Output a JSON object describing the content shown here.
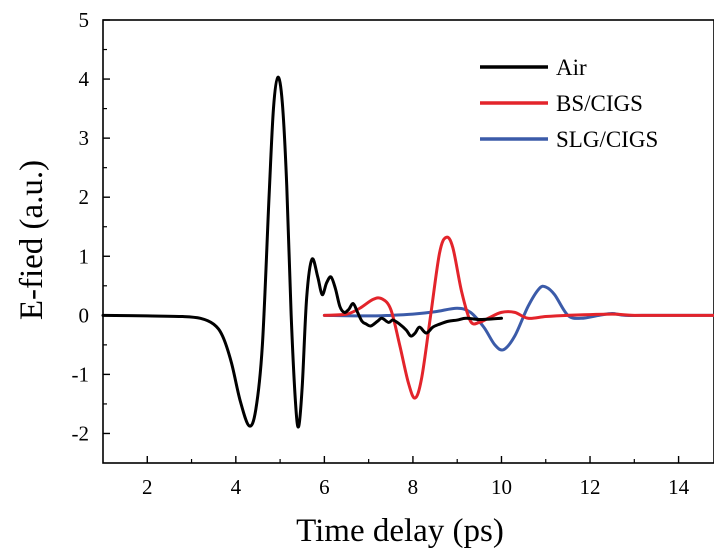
{
  "chart_data": {
    "type": "line",
    "title": "",
    "xlabel": "Time delay (ps)",
    "ylabel": "E-fied (a.u.)",
    "xlim": [
      1,
      14.8
    ],
    "ylim": [
      -2.5,
      5
    ],
    "xticks": [
      2,
      4,
      6,
      8,
      10,
      12,
      14
    ],
    "yticks": [
      -2,
      -1,
      0,
      1,
      2,
      3,
      4,
      5
    ],
    "grid": false,
    "legend": "top-right",
    "series": [
      {
        "name": "Air",
        "color": "#000000",
        "points": [
          [
            1.0,
            0.0
          ],
          [
            2.0,
            -0.01
          ],
          [
            2.8,
            -0.02
          ],
          [
            3.2,
            -0.05
          ],
          [
            3.5,
            -0.15
          ],
          [
            3.7,
            -0.35
          ],
          [
            3.9,
            -0.8
          ],
          [
            4.1,
            -1.45
          ],
          [
            4.3,
            -1.87
          ],
          [
            4.45,
            -1.6
          ],
          [
            4.6,
            -0.5
          ],
          [
            4.75,
            2.0
          ],
          [
            4.85,
            3.5
          ],
          [
            4.95,
            4.03
          ],
          [
            5.05,
            3.6
          ],
          [
            5.15,
            2.2
          ],
          [
            5.25,
            0.0
          ],
          [
            5.35,
            -1.5
          ],
          [
            5.42,
            -1.88
          ],
          [
            5.5,
            -1.2
          ],
          [
            5.6,
            0.3
          ],
          [
            5.72,
            0.95
          ],
          [
            5.85,
            0.65
          ],
          [
            5.95,
            0.35
          ],
          [
            6.05,
            0.55
          ],
          [
            6.15,
            0.65
          ],
          [
            6.25,
            0.45
          ],
          [
            6.35,
            0.15
          ],
          [
            6.45,
            0.05
          ],
          [
            6.55,
            0.1
          ],
          [
            6.65,
            0.2
          ],
          [
            6.75,
            0.05
          ],
          [
            6.85,
            -0.1
          ],
          [
            6.95,
            -0.15
          ],
          [
            7.05,
            -0.18
          ],
          [
            7.2,
            -0.1
          ],
          [
            7.3,
            -0.05
          ],
          [
            7.45,
            -0.12
          ],
          [
            7.55,
            -0.08
          ],
          [
            7.7,
            -0.15
          ],
          [
            7.85,
            -0.25
          ],
          [
            7.95,
            -0.35
          ],
          [
            8.05,
            -0.3
          ],
          [
            8.15,
            -0.2
          ],
          [
            8.3,
            -0.3
          ],
          [
            8.45,
            -0.2
          ],
          [
            8.6,
            -0.15
          ],
          [
            8.8,
            -0.1
          ],
          [
            9.0,
            -0.08
          ],
          [
            9.2,
            -0.05
          ],
          [
            9.5,
            -0.07
          ],
          [
            9.8,
            -0.06
          ],
          [
            10.0,
            -0.05
          ]
        ]
      },
      {
        "name": "BS/CIGS",
        "color": "#e3242b",
        "points": [
          [
            6.0,
            0.0
          ],
          [
            6.5,
            0.02
          ],
          [
            6.8,
            0.12
          ],
          [
            7.1,
            0.27
          ],
          [
            7.3,
            0.28
          ],
          [
            7.5,
            0.1
          ],
          [
            7.7,
            -0.5
          ],
          [
            7.9,
            -1.15
          ],
          [
            8.05,
            -1.4
          ],
          [
            8.2,
            -1.05
          ],
          [
            8.4,
            0.0
          ],
          [
            8.6,
            1.05
          ],
          [
            8.75,
            1.32
          ],
          [
            8.9,
            1.15
          ],
          [
            9.1,
            0.4
          ],
          [
            9.3,
            -0.1
          ],
          [
            9.5,
            -0.12
          ],
          [
            9.7,
            -0.05
          ],
          [
            10.0,
            0.05
          ],
          [
            10.3,
            0.05
          ],
          [
            10.6,
            -0.05
          ],
          [
            11.0,
            -0.02
          ],
          [
            11.5,
            0.0
          ],
          [
            12.5,
            0.02
          ],
          [
            13.0,
            0.0
          ],
          [
            14.0,
            0.0
          ],
          [
            14.8,
            0.0
          ]
        ]
      },
      {
        "name": "SLG/CIGS",
        "color": "#3b5ba9",
        "points": [
          [
            6.0,
            0.0
          ],
          [
            7.0,
            -0.01
          ],
          [
            7.5,
            0.0
          ],
          [
            8.0,
            0.02
          ],
          [
            8.5,
            0.06
          ],
          [
            9.0,
            0.12
          ],
          [
            9.3,
            0.05
          ],
          [
            9.6,
            -0.2
          ],
          [
            9.85,
            -0.5
          ],
          [
            10.05,
            -0.58
          ],
          [
            10.3,
            -0.35
          ],
          [
            10.6,
            0.15
          ],
          [
            10.85,
            0.45
          ],
          [
            11.0,
            0.48
          ],
          [
            11.2,
            0.35
          ],
          [
            11.5,
            0.0
          ],
          [
            11.8,
            -0.05
          ],
          [
            12.2,
            0.0
          ],
          [
            12.5,
            0.03
          ],
          [
            12.8,
            0.0
          ],
          [
            13.5,
            0.0
          ],
          [
            14.8,
            0.0
          ]
        ]
      }
    ]
  }
}
